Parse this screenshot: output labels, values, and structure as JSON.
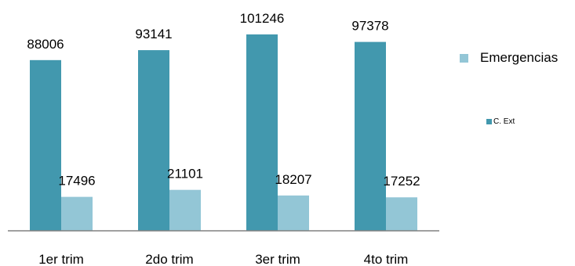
{
  "chart_data": {
    "type": "bar",
    "categories": [
      "1er trim",
      "2do trim",
      "3er trim",
      "4to trim"
    ],
    "series": [
      {
        "name": "C. Ext",
        "values": [
          88006,
          93141,
          101246,
          97378
        ],
        "color": "#4298AE"
      },
      {
        "name": "Emergencias",
        "values": [
          17496,
          21101,
          18207,
          17252
        ],
        "color": "#93C6D6"
      }
    ],
    "ylim": [
      0,
      110000
    ],
    "grid": false,
    "legend": "right"
  }
}
